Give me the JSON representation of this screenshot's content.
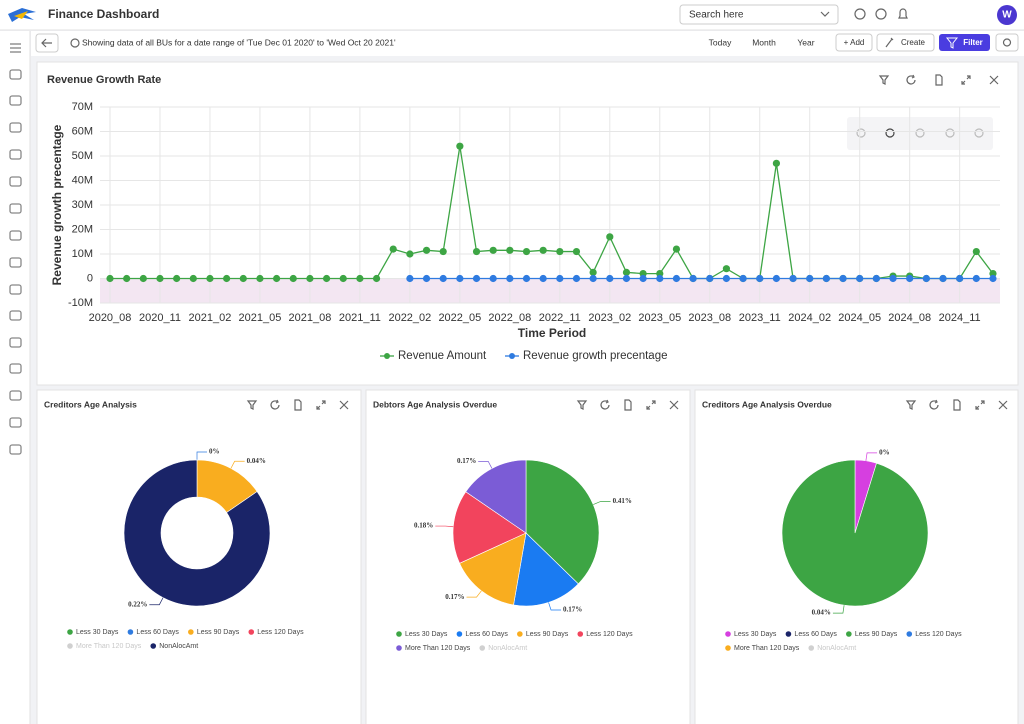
{
  "header": {
    "title": "Finance Dashboard",
    "search_placeholder": "Search here",
    "avatar": "W"
  },
  "toolbar": {
    "info": "Showing data of all BUs for a date range of 'Tue Dec 01 2020' to 'Wed Oct 20 2021'",
    "buttons": [
      "Today",
      "Month",
      "Year",
      "+ Add",
      "Create",
      "Filter"
    ]
  },
  "chart_data": [
    {
      "type": "line",
      "title": "Revenue Growth Rate",
      "y_label": "Revenue growth precentage",
      "x_label": "Time Period",
      "categories": [
        "2020_08",
        null,
        null,
        "2020_11",
        null,
        null,
        "2021_02",
        null,
        null,
        "2021_05",
        null,
        null,
        "2021_08",
        null,
        null,
        "2021_11",
        null,
        null,
        "2022_02",
        null,
        null,
        "2022_05",
        null,
        null,
        "2022_08",
        null,
        null,
        "2022_11",
        null,
        null,
        "2023_02",
        null,
        null,
        "2023_05",
        null,
        null,
        "2023_08",
        null,
        null,
        "2023_11",
        null,
        null,
        "2024_02",
        null,
        null,
        "2024_05",
        null,
        null,
        "2024_08",
        null,
        null,
        "2024_11",
        null,
        null
      ],
      "series": [
        {
          "name": "Revenue Amount",
          "color": "#3da544",
          "values": [
            0,
            0,
            0,
            0,
            0,
            0,
            0,
            0,
            0,
            0,
            0,
            0,
            0,
            0,
            0,
            0,
            0,
            12000000,
            10000000,
            11500000,
            11000000,
            54000000,
            11000000,
            11500000,
            11500000,
            11000000,
            11500000,
            11000000,
            11000000,
            2500000,
            17000000,
            2500000,
            2000000,
            2000000,
            12000000,
            0,
            0,
            4000000,
            0,
            0,
            47000000,
            0,
            0,
            0,
            0,
            0,
            0,
            1000000,
            1000000,
            0,
            0,
            0,
            11000000,
            2000000
          ]
        },
        {
          "name": "Revenue growth precentage",
          "color": "#2f7be0",
          "values": [
            null,
            null,
            null,
            null,
            null,
            null,
            null,
            null,
            null,
            null,
            null,
            null,
            null,
            null,
            null,
            null,
            null,
            null,
            0,
            0,
            0,
            0,
            0,
            0,
            0,
            0,
            0,
            0,
            0,
            0,
            0,
            0,
            0,
            0,
            0,
            0,
            0,
            0,
            0,
            0,
            0,
            0,
            0,
            0,
            0,
            0,
            0,
            0,
            0,
            0,
            0,
            0,
            0,
            0
          ]
        }
      ],
      "ylim": [
        -10000000,
        70000000
      ],
      "yticks": [
        {
          "value": -10000000,
          "label": "-10M"
        },
        0,
        {
          "value": 10000000,
          "label": "10M"
        },
        {
          "value": 20000000,
          "label": "20M"
        },
        {
          "value": 30000000,
          "label": "30M"
        },
        {
          "value": 40000000,
          "label": "40M"
        },
        {
          "value": 50000000,
          "label": "50M"
        },
        {
          "value": 60000000,
          "label": "60M"
        },
        {
          "value": 70000000,
          "label": "70M"
        }
      ],
      "grid": true,
      "legend": "bottom"
    },
    {
      "type": "donut",
      "title": "Creditors Age Analysis",
      "categories": [
        "Less 30 Days",
        "Less 60 Days",
        "Less 90 Days",
        "Less 120 Days",
        "More Than 120 Days",
        "NonAlocAmt"
      ],
      "colors": [
        "#3da544",
        "#2f7be0",
        "#f9ad1f",
        "#f2445d",
        "#cccccc",
        "#1a2468"
      ],
      "hidden": [
        false,
        false,
        false,
        false,
        true,
        false
      ],
      "values": [
        0,
        0,
        0.04,
        0,
        0,
        0.22
      ],
      "value_labels": [
        null,
        "0%",
        "0.04%",
        null,
        null,
        "0.22%"
      ],
      "legend": "bottom"
    },
    {
      "type": "pie",
      "title": "Debtors Age Analysis Overdue",
      "categories": [
        "Less 30 Days",
        "Less 60 Days",
        "Less 90 Days",
        "Less 120 Days",
        "More Than 120 Days",
        "NonAlocAmt"
      ],
      "colors": [
        "#3da544",
        "#1a7bf2",
        "#f9ad1f",
        "#f2445d",
        "#7b5cd6",
        "#cccccc"
      ],
      "hidden": [
        false,
        false,
        false,
        false,
        false,
        true
      ],
      "values": [
        0.41,
        0.17,
        0.17,
        0.18,
        0.17,
        0
      ],
      "value_labels": [
        "0.41%",
        "0.17%",
        "0.17%",
        "0.18%",
        "0.17%",
        null
      ],
      "legend": "bottom"
    },
    {
      "type": "pie",
      "title": "Creditors Age Analysis Overdue",
      "categories": [
        "Less 30 Days",
        "Less 60 Days",
        "Less 90 Days",
        "Less 120 Days",
        "More Than 120 Days",
        "NonAlocAmt"
      ],
      "colors": [
        "#d63fe0",
        "#1a2468",
        "#3da544",
        "#2f7be0",
        "#f9ad1f",
        "#cccccc"
      ],
      "hidden": [
        false,
        false,
        false,
        false,
        false,
        true
      ],
      "values": [
        0.002,
        0,
        0.04,
        0,
        0,
        0
      ],
      "value_labels": [
        "0%",
        null,
        "0.04%",
        null,
        null,
        null
      ],
      "legend": "bottom"
    }
  ]
}
